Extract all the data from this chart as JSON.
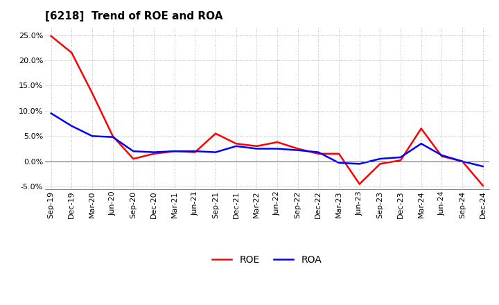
{
  "title": "[6218]  Trend of ROE and ROA",
  "x_labels": [
    "Sep-19",
    "Dec-19",
    "Mar-20",
    "Jun-20",
    "Sep-20",
    "Dec-20",
    "Mar-21",
    "Jun-21",
    "Sep-21",
    "Dec-21",
    "Mar-22",
    "Jun-22",
    "Sep-22",
    "Dec-22",
    "Mar-23",
    "Jun-23",
    "Sep-23",
    "Dec-23",
    "Mar-24",
    "Jun-24",
    "Sep-24",
    "Dec-24"
  ],
  "roe": [
    24.8,
    21.5,
    13.5,
    5.0,
    0.5,
    1.5,
    2.0,
    1.8,
    5.5,
    3.5,
    3.0,
    3.8,
    2.5,
    1.5,
    1.5,
    -4.5,
    -0.5,
    0.2,
    6.5,
    1.0,
    0.0,
    -4.8
  ],
  "roa": [
    9.5,
    7.0,
    5.0,
    4.8,
    2.0,
    1.8,
    2.0,
    2.0,
    1.8,
    3.0,
    2.5,
    2.5,
    2.2,
    1.8,
    -0.3,
    -0.5,
    0.5,
    0.8,
    3.5,
    1.2,
    0.0,
    -1.0
  ],
  "roe_color": "#ff0000",
  "roa_color": "#0000ff",
  "ylim": [
    -5.5,
    26.5
  ],
  "yticks": [
    -5.0,
    0.0,
    5.0,
    10.0,
    15.0,
    20.0,
    25.0
  ],
  "background_color": "#ffffff",
  "grid_color": "#b0b0b0",
  "title_fontsize": 11,
  "axis_fontsize": 8,
  "legend_fontsize": 10,
  "line_width": 1.8
}
